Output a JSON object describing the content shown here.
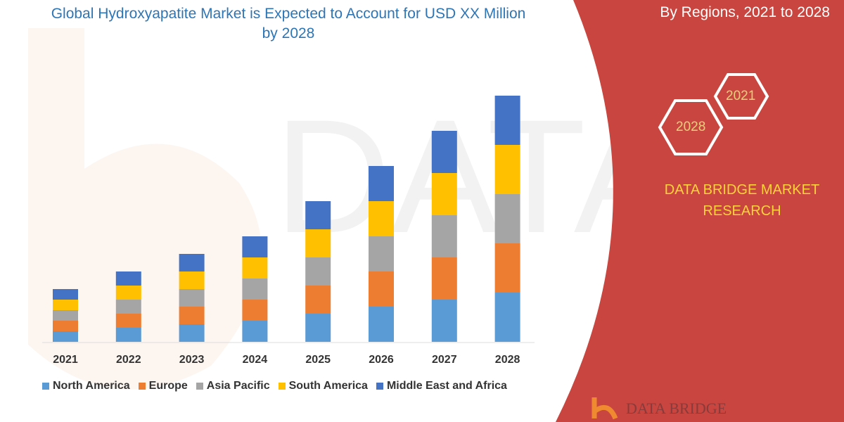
{
  "title": "Global Hydroxyapatite Market is Expected to Account for USD XX Million by 2028",
  "subtitle": "By Regions, 2021 to 2028",
  "brand": "DATA BRIDGE MARKET RESEARCH",
  "logo_text": "DATA BRIDGE",
  "hexagons": [
    "2021",
    "2028"
  ],
  "colors": {
    "panel": "#c8463f",
    "title": "#2e75b6",
    "brand": "#ffd23a"
  },
  "chart_data": {
    "type": "bar",
    "stacked": true,
    "title": "Global Hydroxyapatite Market is Expected to Account for USD XX Million by 2028",
    "categories": [
      "2021",
      "2022",
      "2023",
      "2024",
      "2025",
      "2026",
      "2027",
      "2028"
    ],
    "legend_position": "bottom",
    "grid": false,
    "series": [
      {
        "name": "North America",
        "color": "#5b9bd5",
        "values": [
          15,
          20,
          25,
          30,
          40,
          50,
          60,
          70
        ]
      },
      {
        "name": "Europe",
        "color": "#ed7d31",
        "values": [
          15,
          20,
          25,
          30,
          40,
          50,
          60,
          70
        ]
      },
      {
        "name": "Asia Pacific",
        "color": "#a5a5a5",
        "values": [
          15,
          20,
          25,
          30,
          40,
          50,
          60,
          70
        ]
      },
      {
        "name": "South America",
        "color": "#ffc000",
        "values": [
          15,
          20,
          25,
          30,
          40,
          50,
          60,
          70
        ]
      },
      {
        "name": "Middle East and Africa",
        "color": "#4472c4",
        "values": [
          15,
          20,
          25,
          30,
          40,
          50,
          60,
          70
        ]
      }
    ]
  }
}
